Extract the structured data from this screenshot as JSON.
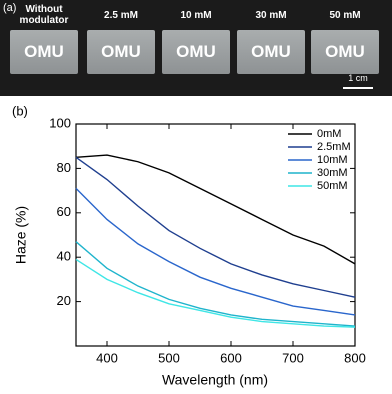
{
  "photo": {
    "panel_label": "(a)",
    "samples": [
      {
        "label": "Without modulator",
        "text": "OMU"
      },
      {
        "label": "2.5 mM",
        "text": "OMU"
      },
      {
        "label": "10 mM",
        "text": "OMU"
      },
      {
        "label": "30 mM",
        "text": "OMU"
      },
      {
        "label": "50 mM",
        "text": "OMU"
      }
    ],
    "scale_bar": "1 cm"
  },
  "chart_data": {
    "type": "line",
    "panel_label": "(b)",
    "x_label": "Wavelength (nm)",
    "y_label": "Haze (%)",
    "x": [
      350,
      400,
      450,
      500,
      550,
      600,
      650,
      700,
      750,
      800
    ],
    "series": [
      {
        "name": "0mM",
        "color": "#000000",
        "values": [
          85,
          86,
          83,
          78,
          71,
          64,
          57,
          50,
          45,
          37
        ]
      },
      {
        "name": "2.5mM",
        "color": "#1f3f8f",
        "values": [
          85,
          75,
          63,
          52,
          44,
          37,
          32,
          28,
          25,
          22
        ]
      },
      {
        "name": "10mM",
        "color": "#2a66cc",
        "values": [
          71,
          57,
          46,
          38,
          31,
          26,
          22,
          18,
          16,
          14
        ]
      },
      {
        "name": "30mM",
        "color": "#1fb4cc",
        "values": [
          47,
          35,
          27,
          21,
          17,
          14,
          12,
          11,
          10,
          9
        ]
      },
      {
        "name": "50mM",
        "color": "#3fe6e6",
        "values": [
          39,
          30,
          24,
          19,
          16,
          13,
          11,
          10,
          9,
          8.5
        ]
      }
    ],
    "xlim": [
      350,
      800
    ],
    "xticks": [
      400,
      500,
      600,
      700,
      800
    ],
    "ylim": [
      0,
      100
    ],
    "yticks": [
      20,
      40,
      60,
      80,
      100
    ],
    "legend": "top-right",
    "grid": false
  }
}
